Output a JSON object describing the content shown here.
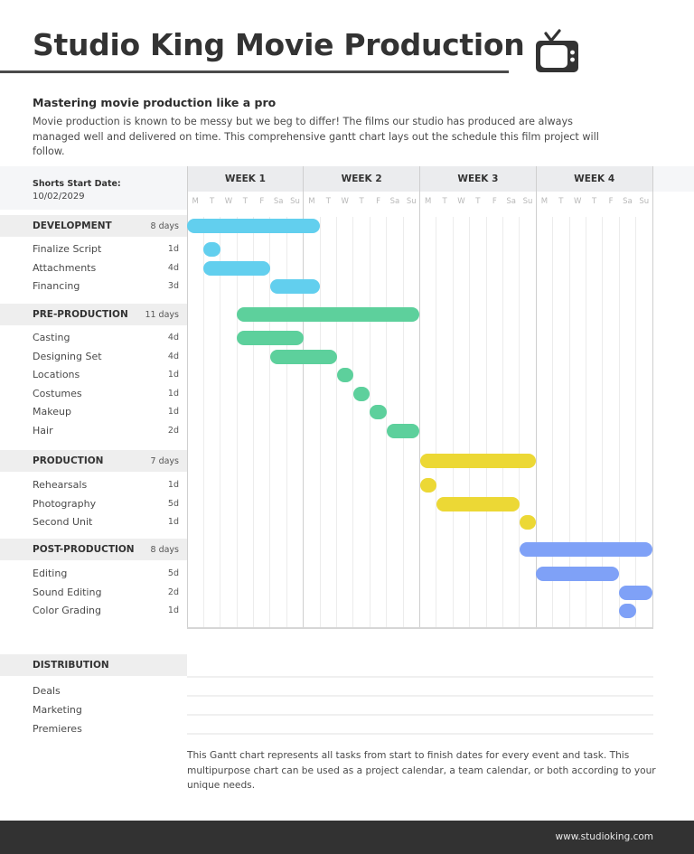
{
  "header": {
    "title": "Studio King Movie Production",
    "icon": "tv-icon",
    "subtitle": "Mastering movie production like a pro",
    "intro": "Movie production is known to be messy but we beg to differ! The films our studio has produced are always managed well and delivered on time. This comprehensive gantt chart lays out the schedule this film project will follow."
  },
  "schedule": {
    "start_label": "Shorts Start Date:",
    "start_date": "10/02/2029",
    "weeks": [
      "WEEK 1",
      "WEEK 2",
      "WEEK 3",
      "WEEK 4"
    ],
    "days": [
      "M",
      "T",
      "W",
      "T",
      "F",
      "Sa",
      "Su"
    ]
  },
  "phases": [
    {
      "name": "DEVELOPMENT",
      "duration": "8 days",
      "color": "#62cfee",
      "start_day": 0,
      "days": 8,
      "tasks": [
        {
          "name": "Finalize Script",
          "duration": "1d",
          "start_day": 1,
          "days": 1
        },
        {
          "name": "Attachments",
          "duration": "4d",
          "start_day": 1,
          "days": 4
        },
        {
          "name": "Financing",
          "duration": "3d",
          "start_day": 5,
          "days": 3
        }
      ]
    },
    {
      "name": "PRE-PRODUCTION",
      "duration": "11 days",
      "color": "#5dd09c",
      "start_day": 3,
      "days": 11,
      "tasks": [
        {
          "name": "Casting",
          "duration": "4d",
          "start_day": 3,
          "days": 4
        },
        {
          "name": "Designing Set",
          "duration": "4d",
          "start_day": 5,
          "days": 4
        },
        {
          "name": "Locations",
          "duration": "1d",
          "start_day": 9,
          "days": 1
        },
        {
          "name": "Costumes",
          "duration": "1d",
          "start_day": 10,
          "days": 1
        },
        {
          "name": "Makeup",
          "duration": "1d",
          "start_day": 11,
          "days": 1
        },
        {
          "name": "Hair",
          "duration": "2d",
          "start_day": 12,
          "days": 2
        }
      ]
    },
    {
      "name": "PRODUCTION",
      "duration": "7 days",
      "color": "#ecd835",
      "start_day": 14,
      "days": 7,
      "tasks": [
        {
          "name": "Rehearsals",
          "duration": "1d",
          "start_day": 14,
          "days": 1
        },
        {
          "name": "Photography",
          "duration": "5d",
          "start_day": 15,
          "days": 5
        },
        {
          "name": "Second Unit",
          "duration": "1d",
          "start_day": 20,
          "days": 1
        }
      ]
    },
    {
      "name": "POST-PRODUCTION",
      "duration": "8 days",
      "color": "#7fa1f7",
      "start_day": 20,
      "days": 8,
      "tasks": [
        {
          "name": "Editing",
          "duration": "5d",
          "start_day": 21,
          "days": 5
        },
        {
          "name": "Sound Editing",
          "duration": "2d",
          "start_day": 26,
          "days": 2
        },
        {
          "name": "Color Grading",
          "duration": "1d",
          "start_day": 26,
          "days": 1
        }
      ]
    }
  ],
  "distribution": {
    "name": "DISTRIBUTION",
    "tasks": [
      "Deals",
      "Marketing",
      "Premieres"
    ]
  },
  "footnote": "This Gantt chart represents all tasks from start to finish dates for every event and task. This multipurpose chart can be used as a project calendar, a team calendar, or both according to your unique needs.",
  "footer": {
    "url": "www.studioking.com"
  },
  "chart_data": {
    "type": "gantt",
    "title": "Studio King Movie Production",
    "x_axis": {
      "weeks": [
        "WEEK 1",
        "WEEK 2",
        "WEEK 3",
        "WEEK 4"
      ],
      "day_labels": [
        "M",
        "T",
        "W",
        "T",
        "F",
        "Sa",
        "Su"
      ],
      "range_days": [
        0,
        28
      ]
    },
    "series": [
      {
        "name": "DEVELOPMENT",
        "color": "#62cfee",
        "start": 0,
        "end": 8,
        "tasks": [
          {
            "name": "Finalize Script",
            "start": 1,
            "end": 2
          },
          {
            "name": "Attachments",
            "start": 1,
            "end": 5
          },
          {
            "name": "Financing",
            "start": 5,
            "end": 8
          }
        ]
      },
      {
        "name": "PRE-PRODUCTION",
        "color": "#5dd09c",
        "start": 3,
        "end": 14,
        "tasks": [
          {
            "name": "Casting",
            "start": 3,
            "end": 7
          },
          {
            "name": "Designing Set",
            "start": 5,
            "end": 9
          },
          {
            "name": "Locations",
            "start": 9,
            "end": 10
          },
          {
            "name": "Costumes",
            "start": 10,
            "end": 11
          },
          {
            "name": "Makeup",
            "start": 11,
            "end": 12
          },
          {
            "name": "Hair",
            "start": 12,
            "end": 14
          }
        ]
      },
      {
        "name": "PRODUCTION",
        "color": "#ecd835",
        "start": 14,
        "end": 21,
        "tasks": [
          {
            "name": "Rehearsals",
            "start": 14,
            "end": 15
          },
          {
            "name": "Photography",
            "start": 15,
            "end": 20
          },
          {
            "name": "Second Unit",
            "start": 20,
            "end": 21
          }
        ]
      },
      {
        "name": "POST-PRODUCTION",
        "color": "#7fa1f7",
        "start": 20,
        "end": 28,
        "tasks": [
          {
            "name": "Editing",
            "start": 21,
            "end": 26
          },
          {
            "name": "Sound Editing",
            "start": 26,
            "end": 28
          },
          {
            "name": "Color Grading",
            "start": 26,
            "end": 27
          }
        ]
      },
      {
        "name": "DISTRIBUTION",
        "tasks": [
          {
            "name": "Deals"
          },
          {
            "name": "Marketing"
          },
          {
            "name": "Premieres"
          }
        ]
      }
    ]
  }
}
